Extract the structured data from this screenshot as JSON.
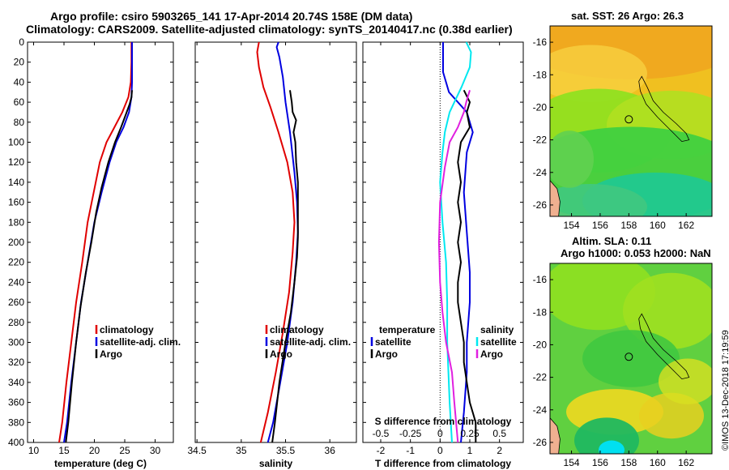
{
  "header": {
    "line1": "Argo profile: csiro 5903265_141 17-Apr-2014 20.74S 158E (DM data)",
    "line2": "Climatology: CARS2009. Satellite-adjusted climatology: synTS_20140417.nc (0.38d earlier)"
  },
  "map_sst": {
    "title": "sat. SST: 26 Argo: 26.3"
  },
  "map_sla": {
    "title_line1": "Altim. SLA: 0.11",
    "title_line2": "Argo h1000: 0.053 h2000: NaN"
  },
  "watermark": "©IMOS 13-Dec-2018 17:19:59",
  "colors": {
    "climatology": "#e00000",
    "satellite": "#0000e0",
    "argo": "#000000",
    "s_satellite": "#00e8f0",
    "s_argo": "#e020e0"
  },
  "chart_data": [
    {
      "type": "line",
      "id": "temperature",
      "xlabel": "temperature (deg C)",
      "ylabel": "",
      "xlim": [
        9,
        33
      ],
      "ylim": [
        400,
        0
      ],
      "xticks": [
        10,
        15,
        20,
        25,
        30
      ],
      "yticks": [
        0,
        20,
        40,
        60,
        80,
        100,
        120,
        140,
        160,
        180,
        200,
        220,
        240,
        260,
        280,
        300,
        320,
        340,
        360,
        380,
        400
      ],
      "legend": [
        "climatology",
        "satellite-adj. clim.",
        "Argo"
      ],
      "series": [
        {
          "name": "climatology",
          "color": "#e00000",
          "points": [
            [
              26.1,
              0
            ],
            [
              26.1,
              20
            ],
            [
              26.0,
              40
            ],
            [
              25.6,
              55
            ],
            [
              24.6,
              70
            ],
            [
              23.3,
              85
            ],
            [
              22.0,
              100
            ],
            [
              20.9,
              120
            ],
            [
              19.9,
              150
            ],
            [
              18.9,
              180
            ],
            [
              18.0,
              220
            ],
            [
              17.0,
              260
            ],
            [
              16.2,
              300
            ],
            [
              15.4,
              340
            ],
            [
              14.7,
              380
            ],
            [
              14.2,
              400
            ]
          ]
        },
        {
          "name": "satellite-adj. clim.",
          "color": "#0000e0",
          "points": [
            [
              26.2,
              0
            ],
            [
              26.2,
              20
            ],
            [
              26.2,
              40
            ],
            [
              26.1,
              55
            ],
            [
              25.7,
              70
            ],
            [
              24.8,
              85
            ],
            [
              23.6,
              100
            ],
            [
              22.5,
              120
            ],
            [
              21.2,
              150
            ],
            [
              20.0,
              180
            ],
            [
              18.9,
              220
            ],
            [
              17.8,
              260
            ],
            [
              17.0,
              300
            ],
            [
              16.2,
              340
            ],
            [
              15.5,
              380
            ],
            [
              15.0,
              400
            ]
          ]
        },
        {
          "name": "Argo",
          "color": "#000000",
          "points": [
            [
              26.2,
              48
            ],
            [
              26.1,
              55
            ],
            [
              25.8,
              62
            ],
            [
              25.2,
              72
            ],
            [
              24.4,
              85
            ],
            [
              23.4,
              100
            ],
            [
              22.3,
              120
            ],
            [
              21.2,
              145
            ],
            [
              20.3,
              170
            ],
            [
              19.5,
              200
            ],
            [
              18.6,
              230
            ],
            [
              17.7,
              265
            ],
            [
              17.0,
              300
            ],
            [
              16.3,
              340
            ],
            [
              15.7,
              380
            ],
            [
              15.3,
              400
            ]
          ]
        }
      ]
    },
    {
      "type": "line",
      "id": "salinity",
      "xlabel": "salinity",
      "ylabel": "",
      "xlim": [
        34.48,
        36.3
      ],
      "ylim": [
        400,
        0
      ],
      "xticks": [
        34.5,
        35,
        35.5,
        36
      ],
      "xticklabels": [
        "34.5",
        "35",
        "35.5",
        "36"
      ],
      "legend": [
        "climatology",
        "satellite-adj. clim.",
        "Argo"
      ],
      "series": [
        {
          "name": "climatology",
          "color": "#e00000",
          "points": [
            [
              35.2,
              0
            ],
            [
              35.18,
              10
            ],
            [
              35.2,
              25
            ],
            [
              35.25,
              45
            ],
            [
              35.33,
              65
            ],
            [
              35.42,
              90
            ],
            [
              35.52,
              120
            ],
            [
              35.58,
              150
            ],
            [
              35.6,
              180
            ],
            [
              35.58,
              210
            ],
            [
              35.54,
              250
            ],
            [
              35.47,
              290
            ],
            [
              35.39,
              330
            ],
            [
              35.3,
              370
            ],
            [
              35.22,
              400
            ]
          ]
        },
        {
          "name": "satellite-adj. clim.",
          "color": "#0000e0",
          "points": [
            [
              35.42,
              0
            ],
            [
              35.4,
              5
            ],
            [
              35.43,
              15
            ],
            [
              35.47,
              35
            ],
            [
              35.5,
              60
            ],
            [
              35.55,
              90
            ],
            [
              35.6,
              130
            ],
            [
              35.63,
              160
            ],
            [
              35.64,
              190
            ],
            [
              35.62,
              220
            ],
            [
              35.58,
              260
            ],
            [
              35.52,
              300
            ],
            [
              35.44,
              340
            ],
            [
              35.36,
              380
            ],
            [
              35.3,
              400
            ]
          ]
        },
        {
          "name": "Argo",
          "color": "#000000",
          "points": [
            [
              35.55,
              48
            ],
            [
              35.57,
              60
            ],
            [
              35.58,
              70
            ],
            [
              35.62,
              78
            ],
            [
              35.59,
              90
            ],
            [
              35.61,
              100
            ],
            [
              35.62,
              120
            ],
            [
              35.64,
              140
            ],
            [
              35.64,
              170
            ],
            [
              35.64,
              195
            ],
            [
              35.63,
              215
            ],
            [
              35.6,
              240
            ],
            [
              35.56,
              270
            ],
            [
              35.5,
              300
            ],
            [
              35.43,
              340
            ],
            [
              35.38,
              380
            ],
            [
              35.35,
              400
            ]
          ]
        }
      ]
    },
    {
      "type": "line",
      "id": "differences",
      "xlabel": "T difference from climatology",
      "secondary_xlabel": "S difference from climatology",
      "xlim": [
        -2.6,
        2.8
      ],
      "ylim": [
        400,
        0
      ],
      "xticks": [
        -2,
        -1,
        0,
        1,
        2
      ],
      "xticklabels": [
        "-2",
        "-1",
        "0",
        "1",
        "2"
      ],
      "secondary_xticks": [
        -0.5,
        -0.25,
        0,
        0.25,
        0.5
      ],
      "secondary_xticklabels": [
        "-0.5",
        "-0.25",
        "0",
        "0.25",
        "0.5"
      ],
      "secondary_xlim": [
        -0.65,
        0.7
      ],
      "legend_temperature": {
        "title": "temperature",
        "entries": [
          "satellite",
          "Argo"
        ]
      },
      "legend_salinity": {
        "title": "salinity",
        "entries": [
          "satellite",
          "Argo"
        ]
      },
      "series": [
        {
          "name": "T satellite",
          "axis": "T",
          "color": "#0000e0",
          "points": [
            [
              0.1,
              0
            ],
            [
              0.1,
              10
            ],
            [
              0.1,
              30
            ],
            [
              0.3,
              50
            ],
            [
              0.9,
              70
            ],
            [
              1.1,
              90
            ],
            [
              0.9,
              110
            ],
            [
              0.8,
              150
            ],
            [
              0.9,
              190
            ],
            [
              1.0,
              230
            ],
            [
              1.0,
              260
            ],
            [
              0.9,
              300
            ],
            [
              0.9,
              330
            ],
            [
              0.8,
              370
            ],
            [
              0.7,
              400
            ]
          ]
        },
        {
          "name": "T Argo",
          "axis": "T",
          "color": "#000000",
          "points": [
            [
              0.8,
              48
            ],
            [
              1.0,
              60
            ],
            [
              0.9,
              70
            ],
            [
              1.0,
              85
            ],
            [
              0.7,
              100
            ],
            [
              0.6,
              120
            ],
            [
              0.7,
              140
            ],
            [
              0.6,
              160
            ],
            [
              0.7,
              180
            ],
            [
              0.6,
              200
            ],
            [
              0.7,
              220
            ],
            [
              0.6,
              240
            ],
            [
              0.6,
              260
            ],
            [
              0.7,
              280
            ],
            [
              0.8,
              300
            ],
            [
              0.8,
              320
            ],
            [
              0.9,
              340
            ],
            [
              1.0,
              360
            ],
            [
              1.2,
              380
            ],
            [
              1.2,
              400
            ]
          ]
        },
        {
          "name": "S satellite",
          "axis": "S",
          "color": "#00e8f0",
          "points": [
            [
              0.22,
              0
            ],
            [
              0.26,
              10
            ],
            [
              0.25,
              25
            ],
            [
              0.18,
              45
            ],
            [
              0.08,
              70
            ],
            [
              0.04,
              90
            ],
            [
              0.02,
              110
            ],
            [
              0.0,
              140
            ],
            [
              0.02,
              180
            ],
            [
              0.05,
              220
            ],
            [
              0.06,
              260
            ],
            [
              0.06,
              300
            ],
            [
              0.07,
              330
            ],
            [
              0.08,
              360
            ],
            [
              0.1,
              400
            ]
          ]
        },
        {
          "name": "S Argo",
          "axis": "S",
          "color": "#e020e0",
          "points": [
            [
              0.25,
              48
            ],
            [
              0.22,
              60
            ],
            [
              0.2,
              70
            ],
            [
              0.15,
              85
            ],
            [
              0.08,
              100
            ],
            [
              0.04,
              125
            ],
            [
              0.0,
              160
            ],
            [
              -0.01,
              200
            ],
            [
              0.0,
              240
            ],
            [
              0.02,
              270
            ],
            [
              0.05,
              300
            ],
            [
              0.1,
              330
            ],
            [
              0.12,
              360
            ],
            [
              0.15,
              400
            ]
          ]
        }
      ]
    },
    {
      "type": "heatmap",
      "id": "sst_map",
      "title": "sat. SST: 26 Argo: 26.3",
      "xlim": [
        152.5,
        163.8
      ],
      "ylim": [
        -26.7,
        -15
      ],
      "xticks": [
        154,
        156,
        158,
        160,
        162
      ],
      "yticks": [
        -16,
        -18,
        -20,
        -22,
        -24,
        -26
      ],
      "argo_position": [
        158.0,
        -20.74
      ]
    },
    {
      "type": "heatmap",
      "id": "sla_map",
      "title": "Altim. SLA: 0.11",
      "xlim": [
        152.5,
        163.8
      ],
      "ylim": [
        -26.7,
        -15
      ],
      "xticks": [
        154,
        156,
        158,
        160,
        162
      ],
      "yticks": [
        -16,
        -18,
        -20,
        -22,
        -24,
        -26
      ],
      "argo_position": [
        158.0,
        -20.74
      ]
    }
  ]
}
